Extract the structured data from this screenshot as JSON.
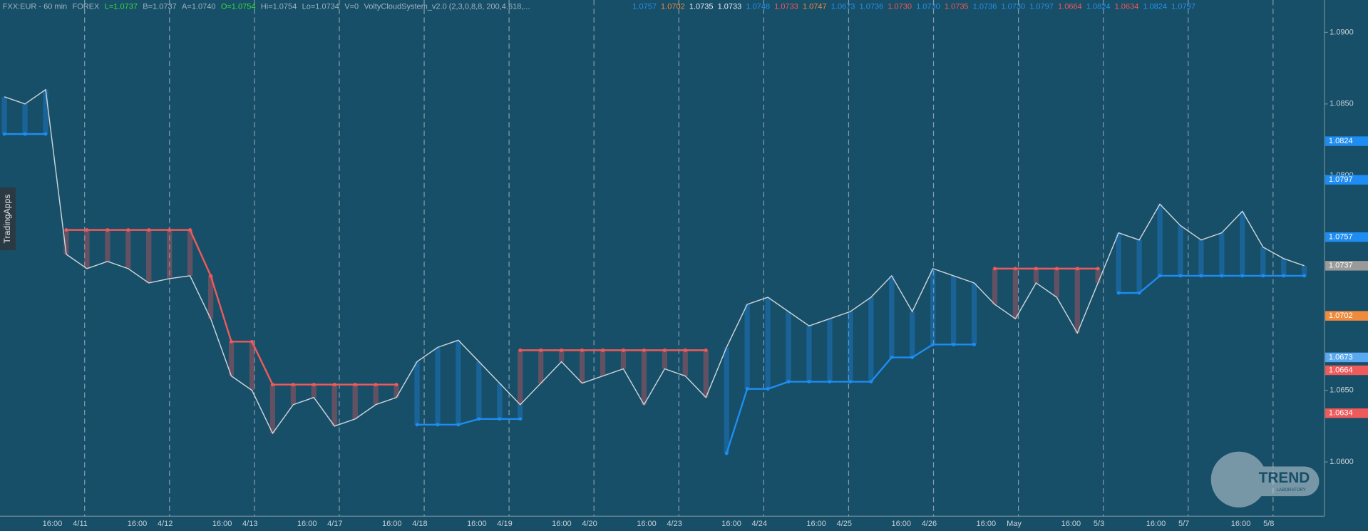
{
  "chart_data": {
    "type": "line",
    "header": [
      {
        "text": "FXX:EUR - 60 min",
        "color": "#9fb4c0"
      },
      {
        "text": "FOREX",
        "color": "#9fb4c0"
      },
      {
        "text": "L=1.0737",
        "color": "#3cdc3c"
      },
      {
        "text": "B=1.0737",
        "color": "#9fb4c0"
      },
      {
        "text": "A=1.0740",
        "color": "#9fb4c0"
      },
      {
        "text": "O=1.0754",
        "color": "#3cdc3c"
      },
      {
        "text": "Hi=1.0754",
        "color": "#9fb4c0"
      },
      {
        "text": "Lo=1.0734",
        "color": "#9fb4c0"
      },
      {
        "text": "V=0",
        "color": "#9fb4c0"
      },
      {
        "text": "VoltyCloudSystem_v2.0 (2,3,0,8,8, 200,4.618,...",
        "color": "#9fb4c0"
      }
    ],
    "indicator_values": [
      {
        "text": "1.0757",
        "color": "#2a8fe8"
      },
      {
        "text": "1.0702",
        "color": "#f08a3c"
      },
      {
        "text": "1.0735",
        "color": "#e8eef2"
      },
      {
        "text": "1.0733",
        "color": "#e8eef2"
      },
      {
        "text": "1.0748",
        "color": "#2a8fe8"
      },
      {
        "text": "1.0733",
        "color": "#ef5a5a"
      },
      {
        "text": "1.0747",
        "color": "#f08a3c"
      },
      {
        "text": "1.0673",
        "color": "#2a8fe8"
      },
      {
        "text": "1.0736",
        "color": "#2a8fe8"
      },
      {
        "text": "1.0730",
        "color": "#ef5a5a"
      },
      {
        "text": "1.0730",
        "color": "#2a8fe8"
      },
      {
        "text": "1.0735",
        "color": "#ef5a5a"
      },
      {
        "text": "1.0736",
        "color": "#2a8fe8"
      },
      {
        "text": "1.0730",
        "color": "#2a8fe8"
      },
      {
        "text": "1.0797",
        "color": "#2a8fe8"
      },
      {
        "text": "1.0664",
        "color": "#ef5a5a"
      },
      {
        "text": "1.0824",
        "color": "#2a8fe8"
      },
      {
        "text": "1.0634",
        "color": "#ef5a5a"
      },
      {
        "text": "1.0824",
        "color": "#2a8fe8"
      },
      {
        "text": "1.0797",
        "color": "#2a8fe8"
      }
    ],
    "x_labels": [
      "16:00",
      "4/11",
      "16:00",
      "4/12",
      "16:00",
      "4/13",
      "16:00",
      "4/17",
      "16:00",
      "4/18",
      "16:00",
      "4/19",
      "16:00",
      "4/20",
      "16:00",
      "4/23",
      "16:00",
      "4/24",
      "16:00",
      "4/25",
      "16:00",
      "4/26",
      "16:00",
      "May",
      "16:00",
      "5/3",
      "16:00",
      "5/7",
      "16:00",
      "5/8"
    ],
    "series": [
      {
        "color": "#c9d3d8",
        "values": [
          1.0855,
          1.085,
          1.086,
          1.0745,
          1.0735,
          1.074,
          1.0735,
          1.0725,
          1.0728,
          1.073,
          1.07,
          1.066,
          1.065,
          1.062,
          1.064,
          1.0645,
          1.0625,
          1.063,
          1.064,
          1.0645,
          1.067,
          1.068,
          1.0685,
          1.067,
          1.0655,
          1.064,
          1.0655,
          1.067,
          1.0655,
          1.066,
          1.0665,
          1.064,
          1.0665,
          1.066,
          1.0645,
          1.068,
          1.071,
          1.0715,
          1.0705,
          1.0695,
          1.07,
          1.0705,
          1.0715,
          1.073,
          1.0705,
          1.0735,
          1.073,
          1.0725,
          1.071,
          1.07,
          1.0725,
          1.0715,
          1.069,
          1.0725,
          1.076,
          1.0755,
          1.078,
          1.0765,
          1.0755,
          1.076,
          1.0775,
          1.075,
          1.0742,
          1.0737
        ]
      },
      {
        "color": "#ef5a5a",
        "values": [
          null,
          null,
          null,
          1.0762,
          1.0762,
          1.0762,
          1.0762,
          1.0762,
          1.0762,
          1.0762,
          1.073,
          1.0684,
          1.0684,
          1.0654,
          1.0654,
          1.0654,
          1.0654,
          1.0654,
          1.0654,
          1.0654,
          null,
          null,
          null,
          null,
          null,
          1.0678,
          1.0678,
          1.0678,
          1.0678,
          1.0678,
          1.0678,
          1.0678,
          1.0678,
          1.0678,
          1.0678,
          null,
          null,
          null,
          null,
          null,
          null,
          null,
          null,
          null,
          null,
          null,
          null,
          null,
          1.0735,
          1.0735,
          1.0735,
          1.0735,
          1.0735,
          1.0735,
          null,
          null,
          null,
          null,
          null,
          null,
          null,
          null,
          null,
          null
        ]
      },
      {
        "color": "#1e8cf0",
        "values": [
          1.0829,
          1.0829,
          1.0829,
          null,
          null,
          null,
          null,
          null,
          null,
          null,
          null,
          null,
          null,
          null,
          null,
          null,
          null,
          null,
          null,
          null,
          1.0626,
          1.0626,
          1.0626,
          1.063,
          1.063,
          1.063,
          null,
          null,
          null,
          null,
          null,
          null,
          null,
          null,
          null,
          1.0606,
          1.0651,
          1.0651,
          1.0656,
          1.0656,
          1.0656,
          1.0656,
          1.0656,
          1.0673,
          1.0673,
          1.0682,
          1.0682,
          1.0682,
          null,
          null,
          null,
          null,
          null,
          null,
          1.0718,
          1.0718,
          1.073,
          1.073,
          1.073,
          1.073,
          1.073,
          1.073,
          1.073,
          1.073
        ]
      }
    ],
    "ylim": [
      1.05621,
      1.09226
    ],
    "yticks": [
      {
        "value": 1.09,
        "label": "1.0900"
      },
      {
        "value": 1.085,
        "label": "1.0850"
      },
      {
        "value": 1.08,
        "label": "1.0800"
      },
      {
        "value": 1.065,
        "label": "1.0650"
      },
      {
        "value": 1.06,
        "label": "1.0600"
      }
    ],
    "price_tags": [
      {
        "value": 1.0824,
        "color": "#1e8cf0"
      },
      {
        "value": 1.0797,
        "color": "#1e8cf0"
      },
      {
        "value": 1.0757,
        "color": "#1e8cf0"
      },
      {
        "value": 1.0737,
        "color": "#9a9a9a"
      },
      {
        "value": 1.0702,
        "color": "#f08a3c"
      },
      {
        "value": 1.0673,
        "color": "#5aa8f0"
      },
      {
        "value": 1.0664,
        "color": "#ef5a5a"
      },
      {
        "value": 1.0634,
        "color": "#ef5a5a"
      }
    ],
    "side_tab": "TradingApps",
    "logo": {
      "title": "TREND",
      "subtitle": "LABORATORY"
    }
  }
}
